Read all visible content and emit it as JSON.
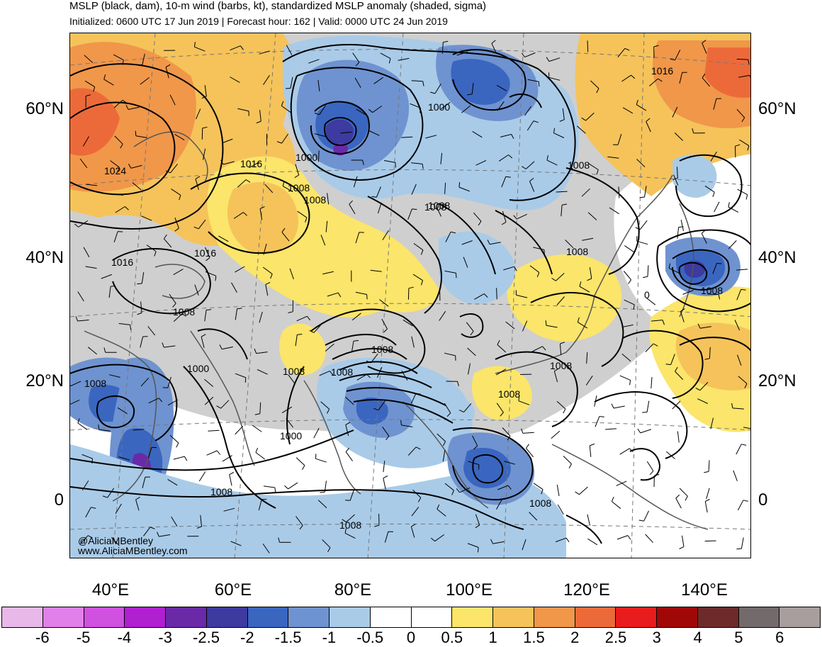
{
  "header": {
    "title": "MSLP (black, dam), 10-m wind (barbs, kt), standardized MSLP anomaly (shaded, sigma)",
    "subtitle": "Initialized: 0600 UTC 17 Jun 2019 | Forecast hour: 162 | Valid: 0000 UTC 24 Jun 2019"
  },
  "axes": {
    "lat_left": [
      "60°N",
      "40°N",
      "20°N",
      "0"
    ],
    "lat_right": [
      "60°N",
      "40°N",
      "20°N",
      "0"
    ],
    "lon_bottom": [
      "40°E",
      "60°E",
      "80°E",
      "100°E",
      "120°E",
      "140°E"
    ]
  },
  "isobar_labels": [
    "1016",
    "1024",
    "1016",
    "1016",
    "1016",
    "1008",
    "1000",
    "1000",
    "1008",
    "1008",
    "1008",
    "1008",
    "1008",
    "1000",
    "1008",
    "1008",
    "1008",
    "1008",
    "1000",
    "1008",
    "1008",
    "1008",
    "1008",
    "1008",
    "1008",
    "0",
    "1008"
  ],
  "credits": {
    "handle": "@AliciaMBentley",
    "website": "www.AliciaMBentley.com"
  },
  "colorbar": {
    "colors": [
      "#e8b8e8",
      "#e080e8",
      "#d050e0",
      "#b020d0",
      "#6a2aa8",
      "#3d3aa0",
      "#3a66c0",
      "#6f93d0",
      "#a9cbe8",
      "#ffffff",
      "#ffffff",
      "#fbe56a",
      "#f5c35a",
      "#f0974a",
      "#ec6a3a",
      "#e81c1c",
      "#a00808",
      "#6e2a2a",
      "#736b6b",
      "#a89e9e"
    ],
    "labels": [
      "-6",
      "-5",
      "-4",
      "-3",
      "-2.5",
      "-2",
      "-1.5",
      "-1",
      "-0.5",
      "0",
      "0.5",
      "1",
      "1.5",
      "2",
      "2.5",
      "3",
      "4",
      "5",
      "6"
    ]
  },
  "palette": {
    "gray": "#cfcfcf",
    "pos1": "#fbe56a",
    "pos2": "#f5c35a",
    "pos3": "#f0974a",
    "pos4": "#ec6a3a",
    "neg1": "#a9cbe8",
    "neg2": "#6f93d0",
    "neg3": "#3a66c0",
    "neg4": "#3d3aa0",
    "neg5": "#6a2aa8"
  }
}
